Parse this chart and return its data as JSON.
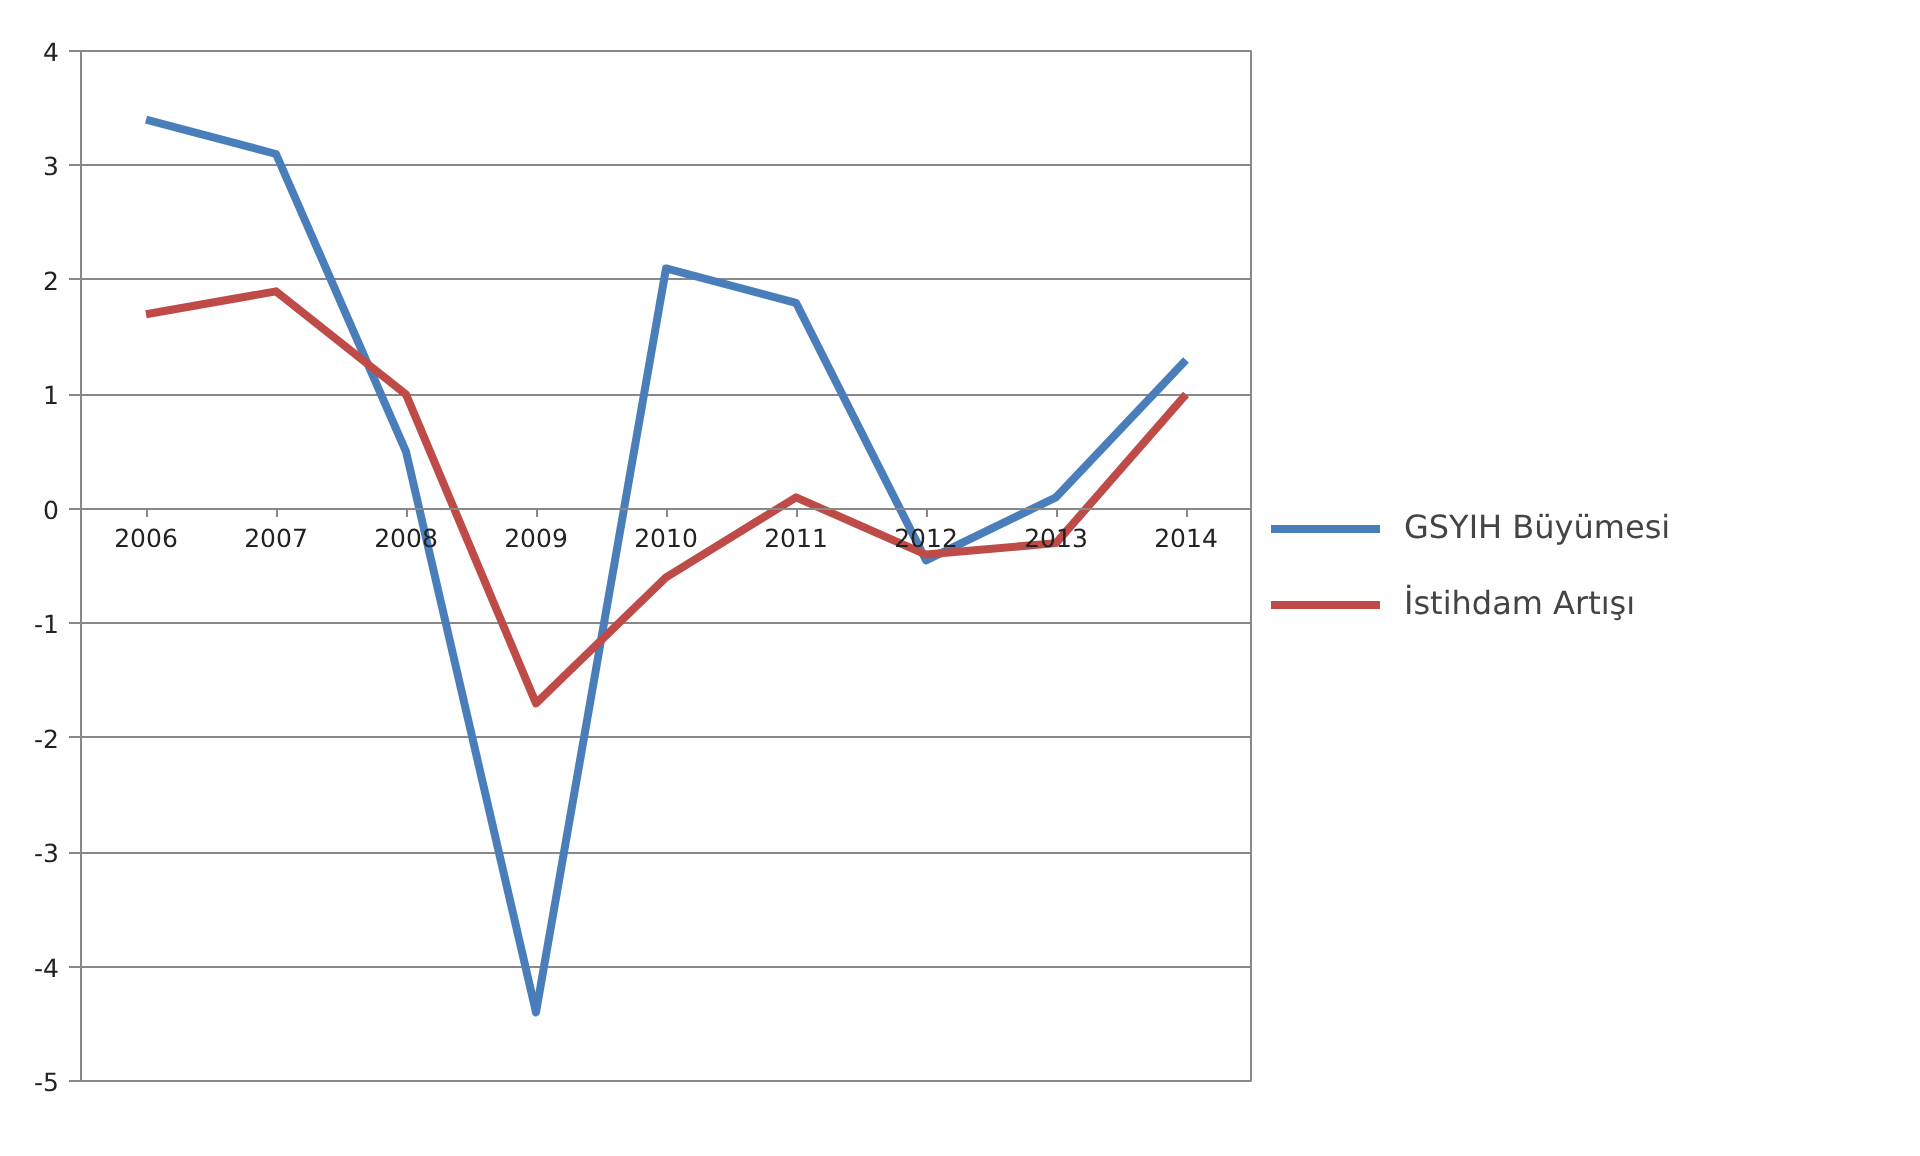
{
  "chart_data": {
    "type": "line",
    "categories": [
      "2006",
      "2007",
      "2008",
      "2009",
      "2010",
      "2011",
      "2012",
      "2013",
      "2014"
    ],
    "series": [
      {
        "name": "GSYIH Büyümesi",
        "color": "#4a7ebb",
        "values": [
          3.4,
          3.1,
          0.5,
          -4.4,
          2.1,
          1.8,
          -0.45,
          0.1,
          1.3
        ]
      },
      {
        "name": "İstihdam Artışı",
        "color": "#be4b48",
        "values": [
          1.7,
          1.9,
          1.0,
          -1.7,
          -0.6,
          0.1,
          -0.4,
          -0.3,
          1.0
        ]
      }
    ],
    "ylim": [
      -5,
      4
    ],
    "yticks": [
      -5,
      -4,
      -3,
      -2,
      -1,
      0,
      1,
      2,
      3,
      4
    ],
    "grid": "y",
    "legend": "right",
    "line_style": "solid",
    "marker": "none"
  }
}
